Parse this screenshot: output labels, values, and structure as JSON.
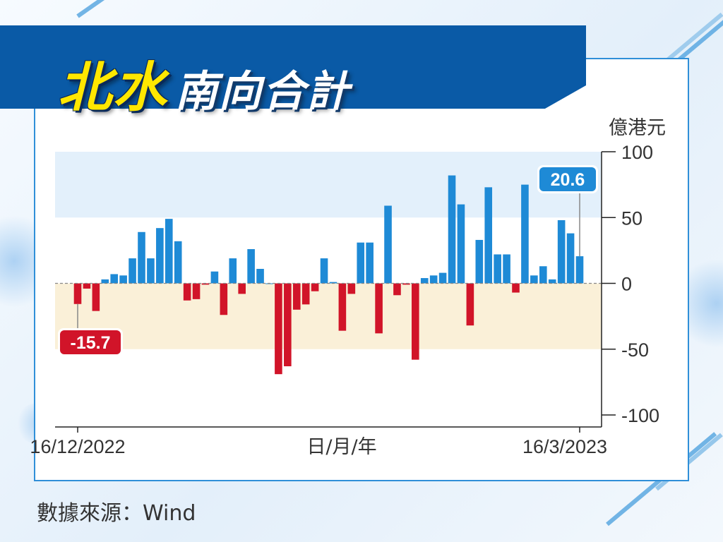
{
  "title": {
    "part1": "北水",
    "part2": "南向合計"
  },
  "source": "數據來源：Wind",
  "chart_data": {
    "type": "bar",
    "unit": "億港元",
    "xlabel": "日/月/年",
    "x_start_label": "16/12/2022",
    "x_end_label": "16/3/2023",
    "ylim": [
      -100,
      100
    ],
    "yticks": [
      "100",
      "50",
      "0",
      "-50",
      "-100"
    ],
    "grid": false,
    "bands": [
      {
        "from": 50,
        "to": 100,
        "color": "#e3f0fb"
      },
      {
        "from": -50,
        "to": 0,
        "color": "#faf0d8"
      }
    ],
    "colors": {
      "positive": "#1e8ad6",
      "negative": "#d11429"
    },
    "values": [
      -15.7,
      -4,
      -21,
      3,
      7,
      6,
      19,
      39,
      19,
      42,
      49,
      32,
      -13,
      -12,
      -1,
      9,
      -24,
      19,
      -8,
      26,
      11,
      0,
      -69,
      -63,
      -20,
      -16,
      -6,
      19,
      1,
      -36,
      -8,
      31,
      31,
      -38,
      59,
      -9,
      -1,
      -58,
      4,
      6,
      8,
      82,
      60,
      -32,
      33,
      73,
      22,
      22,
      -7,
      75,
      6,
      13,
      3,
      48,
      38,
      20.6
    ],
    "annotations": [
      {
        "label": "-15.7",
        "index": 0
      },
      {
        "label": "20.6",
        "index": 55
      }
    ]
  }
}
